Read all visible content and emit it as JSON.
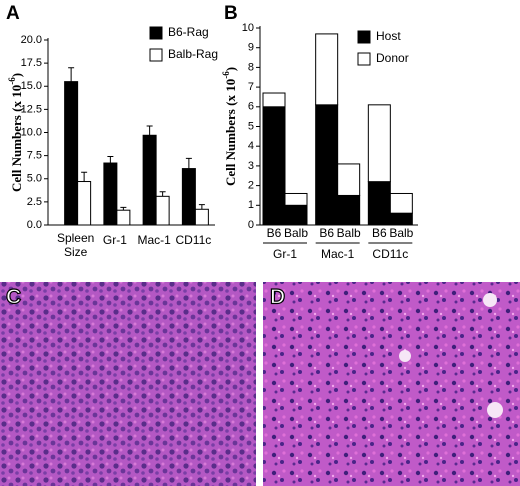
{
  "chart_data": [
    {
      "type": "bar",
      "panel": "A",
      "ylabel": "Cell Numbers (x 10",
      "ylabel_sup": "-6",
      "ylabel_end": ")",
      "categories": [
        [
          "Spleen",
          "Size"
        ],
        [
          "Gr-1"
        ],
        [
          "Mac-1"
        ],
        [
          "CD11c"
        ]
      ],
      "series": [
        {
          "name": "B6-Rag",
          "color": "#000000",
          "values": [
            15.5,
            6.7,
            9.7,
            6.1
          ],
          "errors": [
            1.5,
            0.7,
            1.0,
            1.1
          ]
        },
        {
          "name": "Balb-Rag",
          "color": "#ffffff",
          "values": [
            4.7,
            1.6,
            3.1,
            1.7
          ],
          "errors": [
            1.0,
            0.3,
            0.5,
            0.5
          ]
        }
      ],
      "ylim": [
        0,
        20
      ],
      "yticks": [
        {
          "value": 0,
          "label": "0.0"
        },
        2.5,
        {
          "value": 5,
          "label": "5.0"
        },
        7.5,
        {
          "value": 10,
          "label": "10.0"
        },
        12.5,
        {
          "value": 15,
          "label": "15.0"
        },
        17.5,
        {
          "value": 20,
          "label": "20.0"
        }
      ]
    },
    {
      "type": "stacked_bar",
      "panel": "B",
      "ylabel": "Cell Numbers (x 10",
      "ylabel_sup": "-6",
      "ylabel_end": ")",
      "categories": [
        "B6",
        "Balb",
        "B6",
        "Balb",
        "B6",
        "Balb"
      ],
      "groups": [
        "Gr-1",
        "Mac-1",
        "CD11c"
      ],
      "series": [
        {
          "name": "Host",
          "color": "#000000",
          "values": [
            6.0,
            1.0,
            6.1,
            1.5,
            2.2,
            0.6
          ]
        },
        {
          "name": "Donor",
          "color": "#ffffff",
          "values": [
            0.7,
            0.6,
            3.6,
            1.6,
            3.9,
            1.0
          ]
        }
      ],
      "ylim": [
        0,
        10
      ],
      "yticks": [
        0,
        1,
        2,
        3,
        4,
        5,
        6,
        7,
        8,
        9,
        10
      ]
    }
  ],
  "images": [
    {
      "panel": "C"
    },
    {
      "panel": "D"
    }
  ]
}
